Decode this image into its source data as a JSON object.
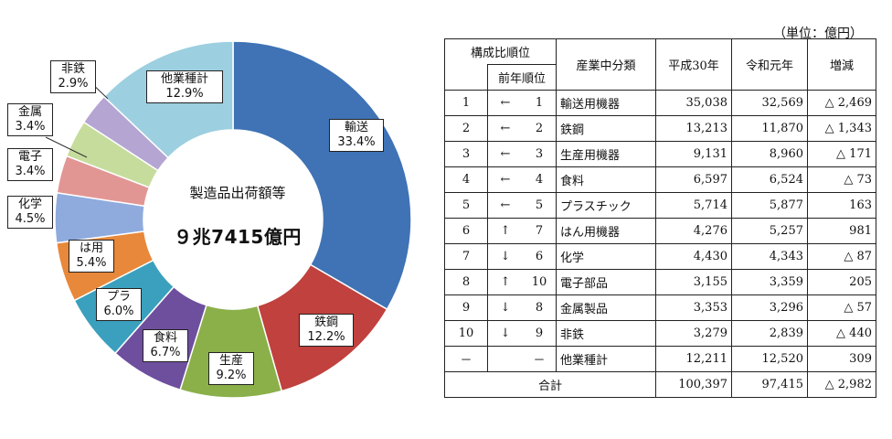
{
  "unit": "（単位：億円）",
  "chart_data": {
    "type": "pie",
    "center_title": "製造品出荷額等",
    "center_total": "９兆7415億円",
    "slices": [
      {
        "label": "輸送",
        "value": 33.4,
        "value_label": "33.4%",
        "color": "#3f73b5"
      },
      {
        "label": "鉄鋼",
        "value": 12.2,
        "value_label": "12.2%",
        "color": "#c0413d"
      },
      {
        "label": "生産",
        "value": 9.2,
        "value_label": "9.2%",
        "color": "#8bb04a"
      },
      {
        "label": "食料",
        "value": 6.7,
        "value_label": "6.7%",
        "color": "#6e4f9e"
      },
      {
        "label": "プラ",
        "value": 6.0,
        "value_label": "6.0%",
        "color": "#3aa0bd"
      },
      {
        "label": "は用",
        "value": 5.4,
        "value_label": "5.4%",
        "color": "#e8883a"
      },
      {
        "label": "化学",
        "value": 4.5,
        "value_label": "4.5%",
        "color": "#8fabde"
      },
      {
        "label": "電子",
        "value": 3.4,
        "value_label": "3.4%",
        "color": "#e29694"
      },
      {
        "label": "金属",
        "value": 3.4,
        "value_label": "3.4%",
        "color": "#c6dc9c"
      },
      {
        "label": "非鉄",
        "value": 2.9,
        "value_label": "2.9%",
        "color": "#b4a5d2"
      },
      {
        "label": "他業種計",
        "value": 12.9,
        "value_label": "12.9%",
        "color": "#9ccfe0"
      }
    ]
  },
  "table": {
    "headers": {
      "rank": "構成比順位",
      "prev_rank": "前年順位",
      "industry": "産業中分類",
      "h30": "平成30年",
      "r1": "令和元年",
      "change": "増減"
    },
    "rows": [
      {
        "rank": "1",
        "arrow": "←",
        "prev": "1",
        "name": "輸送用機器",
        "h30": "35,038",
        "r1": "32,569",
        "change": "△ 2,469"
      },
      {
        "rank": "2",
        "arrow": "←",
        "prev": "2",
        "name": "鉄鋼",
        "h30": "13,213",
        "r1": "11,870",
        "change": "△ 1,343"
      },
      {
        "rank": "3",
        "arrow": "←",
        "prev": "3",
        "name": "生産用機器",
        "h30": "9,131",
        "r1": "8,960",
        "change": "△ 171"
      },
      {
        "rank": "4",
        "arrow": "←",
        "prev": "4",
        "name": "食料",
        "h30": "6,597",
        "r1": "6,524",
        "change": "△ 73"
      },
      {
        "rank": "5",
        "arrow": "←",
        "prev": "5",
        "name": "プラスチック",
        "h30": "5,714",
        "r1": "5,877",
        "change": "163"
      },
      {
        "rank": "6",
        "arrow": "↑",
        "prev": "7",
        "name": "はん用機器",
        "h30": "4,276",
        "r1": "5,257",
        "change": "981"
      },
      {
        "rank": "7",
        "arrow": "↓",
        "prev": "6",
        "name": "化学",
        "h30": "4,430",
        "r1": "4,343",
        "change": "△ 87"
      },
      {
        "rank": "8",
        "arrow": "↑",
        "prev": "10",
        "name": "電子部品",
        "h30": "3,155",
        "r1": "3,359",
        "change": "205"
      },
      {
        "rank": "9",
        "arrow": "↓",
        "prev": "8",
        "name": "金属製品",
        "h30": "3,353",
        "r1": "3,296",
        "change": "△ 57"
      },
      {
        "rank": "10",
        "arrow": "↓",
        "prev": "9",
        "name": "非鉄",
        "h30": "3,279",
        "r1": "2,839",
        "change": "△ 440"
      },
      {
        "rank": "－",
        "arrow": "",
        "prev": "－",
        "name": "他業種計",
        "h30": "12,211",
        "r1": "12,520",
        "change": "309"
      }
    ],
    "total": {
      "label": "合計",
      "h30": "100,397",
      "r1": "97,415",
      "change": "△ 2,982"
    }
  }
}
